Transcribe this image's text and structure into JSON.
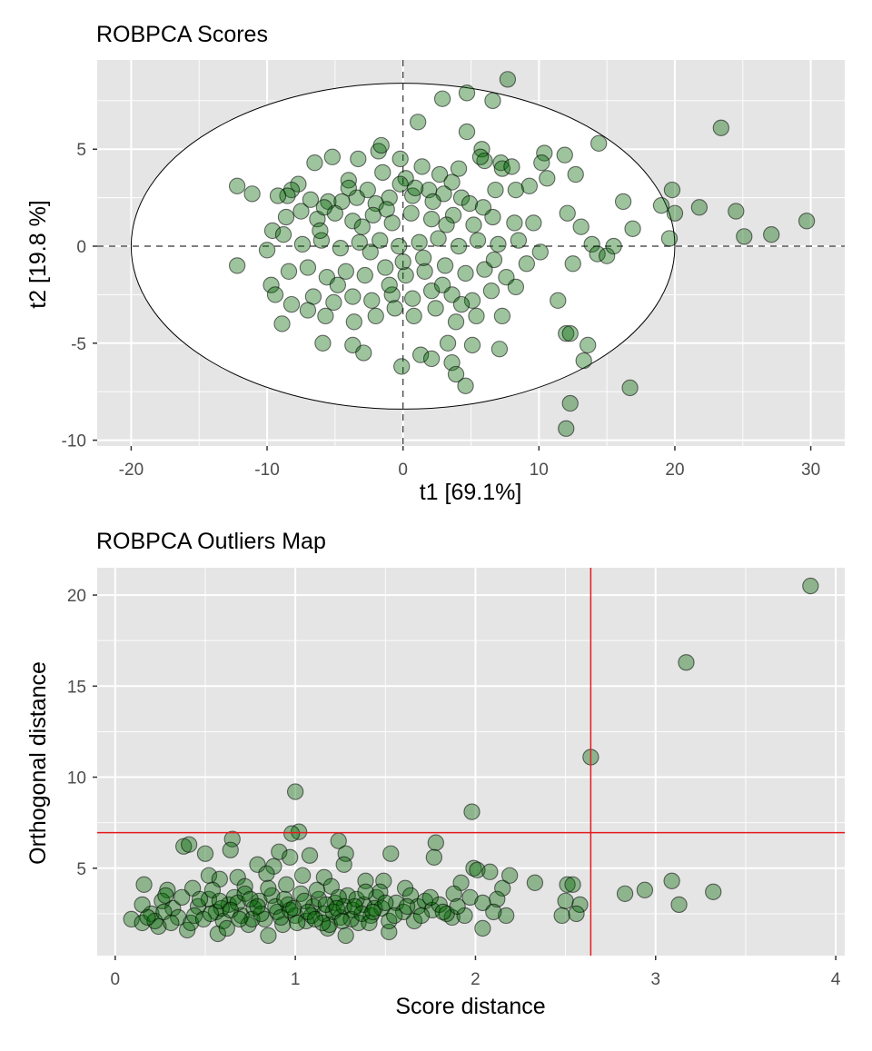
{
  "colors": {
    "panel_bg": "#E5E5E5",
    "grid_major": "#FFFFFF",
    "point_fill": "#006400",
    "point_stroke": "#000000",
    "cutoff_line": "#E41A1C",
    "ellipse_fill": "#FFFFFF"
  },
  "chart_data": [
    {
      "type": "scatter",
      "title": "ROBPCA Scores",
      "xlabel": "t1 [69.1%]",
      "ylabel": "t2 [19.8 %]",
      "xlim": [
        -22.5,
        32.5
      ],
      "ylim": [
        -10.3,
        9.6
      ],
      "xticks": [
        -20,
        -10,
        0,
        10,
        20,
        30
      ],
      "yticks": [
        -10,
        -5,
        0,
        5
      ],
      "xtick_labels": [
        "-20",
        "-10",
        "0",
        "10",
        "20",
        "30"
      ],
      "ytick_labels": [
        "-10",
        "-5",
        "0",
        "5"
      ],
      "grid": true,
      "reference_lines": {
        "x": 0,
        "y": 0,
        "style": "dashed"
      },
      "ellipse": {
        "center": [
          0,
          0
        ],
        "semi_axis_x": 20,
        "semi_axis_y": 8.4
      },
      "points": [
        [
          7.7,
          8.6
        ],
        [
          4.7,
          7.9
        ],
        [
          2.9,
          7.6
        ],
        [
          6.6,
          7.5
        ],
        [
          1.1,
          6.4
        ],
        [
          23.4,
          6.1
        ],
        [
          4.7,
          5.9
        ],
        [
          14.4,
          5.3
        ],
        [
          5.8,
          5.0
        ],
        [
          10.4,
          4.8
        ],
        [
          -5.2,
          4.6
        ],
        [
          11.9,
          4.7
        ],
        [
          -3.3,
          4.5
        ],
        [
          -1.8,
          4.9
        ],
        [
          -1.6,
          5.2
        ],
        [
          -6.5,
          4.3
        ],
        [
          6.0,
          4.4
        ],
        [
          -0.2,
          4.5
        ],
        [
          1.4,
          4.1
        ],
        [
          7.2,
          4.3
        ],
        [
          10.2,
          4.3
        ],
        [
          -4.0,
          3.4
        ],
        [
          2.7,
          3.7
        ],
        [
          12.7,
          3.7
        ],
        [
          0.2,
          3.5
        ],
        [
          3.6,
          3.3
        ],
        [
          10.6,
          3.5
        ],
        [
          -0.2,
          3.2
        ],
        [
          7.3,
          4.0
        ],
        [
          5.7,
          4.6
        ],
        [
          8.0,
          4.1
        ],
        [
          4.1,
          4.0
        ],
        [
          -12.2,
          3.1
        ],
        [
          -11.1,
          2.7
        ],
        [
          -7.7,
          3.2
        ],
        [
          -8.2,
          2.9
        ],
        [
          -8.5,
          2.6
        ],
        [
          -9.2,
          2.6
        ],
        [
          -6.8,
          2.4
        ],
        [
          -5.5,
          2.3
        ],
        [
          -4.5,
          2.3
        ],
        [
          -3.4,
          2.5
        ],
        [
          -2.0,
          2.2
        ],
        [
          -1.0,
          2.5
        ],
        [
          0.7,
          2.6
        ],
        [
          1.9,
          2.9
        ],
        [
          3.0,
          2.7
        ],
        [
          4.3,
          2.5
        ],
        [
          6.8,
          2.9
        ],
        [
          8.3,
          2.9
        ],
        [
          9.3,
          3.1
        ],
        [
          19.0,
          2.1
        ],
        [
          19.8,
          2.9
        ],
        [
          21.8,
          2.0
        ],
        [
          24.5,
          1.8
        ],
        [
          16.2,
          2.3
        ],
        [
          20.0,
          1.7
        ],
        [
          29.7,
          1.3
        ],
        [
          25.1,
          0.5
        ],
        [
          27.1,
          0.6
        ],
        [
          19.6,
          0.4
        ],
        [
          -9.6,
          0.8
        ],
        [
          -8.6,
          1.5
        ],
        [
          -7.5,
          1.8
        ],
        [
          -6.3,
          1.4
        ],
        [
          -5.0,
          1.7
        ],
        [
          -3.7,
          1.3
        ],
        [
          -2.2,
          1.6
        ],
        [
          -0.8,
          1.2
        ],
        [
          0.6,
          1.7
        ],
        [
          2.1,
          1.4
        ],
        [
          3.7,
          1.6
        ],
        [
          5.2,
          1.1
        ],
        [
          6.6,
          1.5
        ],
        [
          8.2,
          1.2
        ],
        [
          9.6,
          1.2
        ],
        [
          12.1,
          1.7
        ],
        [
          13.1,
          1.0
        ],
        [
          16.9,
          0.9
        ],
        [
          -10.0,
          -0.2
        ],
        [
          -8.8,
          0.6
        ],
        [
          -7.4,
          0.1
        ],
        [
          -6.0,
          0.3
        ],
        [
          -4.6,
          -0.1
        ],
        [
          -3.2,
          0.2
        ],
        [
          -1.7,
          0.3
        ],
        [
          -0.3,
          0.0
        ],
        [
          1.2,
          0.2
        ],
        [
          2.6,
          0.4
        ],
        [
          4.1,
          0.0
        ],
        [
          5.5,
          0.3
        ],
        [
          7.0,
          0.1
        ],
        [
          8.5,
          0.3
        ],
        [
          10.1,
          -0.3
        ],
        [
          13.9,
          0.1
        ],
        [
          14.3,
          -0.4
        ],
        [
          15.0,
          -0.5
        ],
        [
          15.5,
          0.0
        ],
        [
          -12.2,
          -1.0
        ],
        [
          -9.7,
          -2.0
        ],
        [
          -8.4,
          -1.3
        ],
        [
          -7.0,
          -1.1
        ],
        [
          -5.6,
          -1.6
        ],
        [
          -4.2,
          -1.3
        ],
        [
          -2.8,
          -1.5
        ],
        [
          -1.3,
          -1.1
        ],
        [
          0.2,
          -1.5
        ],
        [
          1.6,
          -1.3
        ],
        [
          3.1,
          -1.0
        ],
        [
          4.6,
          -1.4
        ],
        [
          6.0,
          -1.2
        ],
        [
          7.6,
          -1.6
        ],
        [
          9.1,
          -0.9
        ],
        [
          12.5,
          -0.9
        ],
        [
          -9.4,
          -2.5
        ],
        [
          -8.2,
          -3.0
        ],
        [
          -6.6,
          -2.6
        ],
        [
          -5.1,
          -2.9
        ],
        [
          -3.7,
          -2.6
        ],
        [
          -2.3,
          -2.8
        ],
        [
          -0.8,
          -2.5
        ],
        [
          0.7,
          -2.7
        ],
        [
          2.1,
          -2.3
        ],
        [
          3.6,
          -2.5
        ],
        [
          5.1,
          -2.8
        ],
        [
          6.5,
          -2.3
        ],
        [
          8.3,
          -2.1
        ],
        [
          11.4,
          -2.8
        ],
        [
          -8.9,
          -4.0
        ],
        [
          -7.0,
          -3.3
        ],
        [
          -5.7,
          -3.6
        ],
        [
          -3.6,
          -3.9
        ],
        [
          -2.0,
          -3.6
        ],
        [
          -0.6,
          -3.2
        ],
        [
          0.8,
          -3.6
        ],
        [
          2.4,
          -3.2
        ],
        [
          3.9,
          -3.9
        ],
        [
          5.4,
          -3.6
        ],
        [
          7.3,
          -3.6
        ],
        [
          12.0,
          -4.5
        ],
        [
          12.3,
          -4.5
        ],
        [
          13.6,
          -5.1
        ],
        [
          -5.9,
          -5.0
        ],
        [
          -3.7,
          -5.1
        ],
        [
          -2.9,
          -5.5
        ],
        [
          -0.1,
          -6.2
        ],
        [
          1.3,
          -5.6
        ],
        [
          3.3,
          -5.0
        ],
        [
          5.1,
          -5.1
        ],
        [
          7.1,
          -5.3
        ],
        [
          2.1,
          -5.8
        ],
        [
          3.6,
          -6.0
        ],
        [
          13.3,
          -5.9
        ],
        [
          3.9,
          -6.6
        ],
        [
          4.6,
          -7.2
        ],
        [
          16.7,
          -7.3
        ],
        [
          12.3,
          -8.1
        ],
        [
          12.0,
          -9.4
        ],
        [
          -1.5,
          3.8
        ],
        [
          -2.6,
          2.9
        ],
        [
          0.9,
          3.0
        ],
        [
          -5.8,
          2.0
        ],
        [
          4.9,
          2.2
        ],
        [
          -1.2,
          1.9
        ],
        [
          2.2,
          2.3
        ],
        [
          -3.0,
          1.0
        ],
        [
          1.5,
          -0.6
        ],
        [
          -4.0,
          3.0
        ],
        [
          3.2,
          1.1
        ],
        [
          -6.1,
          0.8
        ],
        [
          5.9,
          2.0
        ],
        [
          -2.4,
          -0.3
        ],
        [
          0.0,
          -0.8
        ],
        [
          2.9,
          -2.0
        ],
        [
          -4.8,
          -2.0
        ],
        [
          6.7,
          -0.7
        ],
        [
          -1.0,
          -2.0
        ],
        [
          4.3,
          -3.0
        ]
      ]
    },
    {
      "type": "scatter",
      "title": "ROBPCA Outliers Map",
      "xlabel": "Score distance",
      "ylabel": "Orthogonal distance",
      "xlim": [
        -0.1,
        4.05
      ],
      "ylim": [
        0.2,
        21.5
      ],
      "xticks": [
        0,
        1,
        2,
        3,
        4
      ],
      "yticks": [
        5,
        10,
        15,
        20
      ],
      "xtick_labels": [
        "0",
        "1",
        "2",
        "3",
        "4"
      ],
      "ytick_labels": [
        "5",
        "10",
        "15",
        "20"
      ],
      "grid": true,
      "cutoffs": {
        "score_distance": 2.64,
        "orthogonal_distance": 6.95
      },
      "points": [
        [
          3.86,
          20.5
        ],
        [
          3.17,
          16.3
        ],
        [
          2.64,
          11.1
        ],
        [
          1.0,
          9.2
        ],
        [
          1.98,
          8.1
        ],
        [
          1.02,
          7.0
        ],
        [
          0.98,
          6.9
        ],
        [
          0.65,
          6.6
        ],
        [
          1.24,
          6.5
        ],
        [
          1.78,
          6.4
        ],
        [
          0.38,
          6.2
        ],
        [
          0.41,
          6.3
        ],
        [
          0.64,
          6.0
        ],
        [
          0.5,
          5.8
        ],
        [
          0.91,
          5.9
        ],
        [
          1.08,
          5.7
        ],
        [
          1.28,
          5.8
        ],
        [
          1.53,
          5.8
        ],
        [
          1.77,
          5.6
        ],
        [
          0.79,
          5.2
        ],
        [
          0.88,
          5.1
        ],
        [
          0.97,
          5.6
        ],
        [
          1.27,
          5.2
        ],
        [
          1.99,
          5.0
        ],
        [
          2.01,
          4.9
        ],
        [
          2.08,
          4.8
        ],
        [
          2.19,
          4.6
        ],
        [
          0.52,
          4.6
        ],
        [
          0.58,
          4.4
        ],
        [
          0.68,
          4.5
        ],
        [
          0.84,
          4.7
        ],
        [
          1.04,
          4.6
        ],
        [
          1.16,
          4.5
        ],
        [
          1.39,
          4.3
        ],
        [
          1.49,
          4.3
        ],
        [
          0.16,
          4.1
        ],
        [
          0.29,
          3.8
        ],
        [
          0.43,
          3.9
        ],
        [
          0.72,
          4.0
        ],
        [
          0.95,
          4.1
        ],
        [
          1.2,
          4.0
        ],
        [
          1.61,
          3.9
        ],
        [
          1.92,
          4.2
        ],
        [
          2.33,
          4.2
        ],
        [
          2.51,
          4.1
        ],
        [
          2.54,
          4.1
        ],
        [
          3.09,
          4.3
        ],
        [
          2.15,
          3.9
        ],
        [
          2.83,
          3.6
        ],
        [
          2.94,
          3.8
        ],
        [
          3.32,
          3.7
        ],
        [
          3.13,
          3.0
        ],
        [
          2.5,
          3.2
        ],
        [
          2.58,
          3.0
        ],
        [
          2.12,
          3.3
        ],
        [
          1.97,
          3.4
        ],
        [
          2.48,
          2.4
        ],
        [
          2.56,
          2.5
        ],
        [
          2.04,
          3.1
        ],
        [
          2.17,
          2.4
        ],
        [
          2.1,
          2.6
        ],
        [
          2.04,
          1.7
        ],
        [
          1.87,
          2.3
        ],
        [
          1.94,
          2.4
        ],
        [
          1.66,
          2.1
        ],
        [
          1.52,
          1.5
        ],
        [
          1.18,
          1.7
        ],
        [
          1.28,
          1.3
        ],
        [
          0.85,
          1.3
        ],
        [
          0.57,
          1.4
        ],
        [
          0.4,
          1.6
        ],
        [
          0.24,
          1.8
        ],
        [
          0.09,
          2.2
        ],
        [
          0.15,
          2.0
        ],
        [
          0.2,
          2.5
        ],
        [
          0.15,
          3.0
        ],
        [
          0.26,
          3.2
        ],
        [
          0.32,
          2.8
        ],
        [
          0.35,
          2.3
        ],
        [
          0.42,
          2.0
        ],
        [
          0.46,
          2.9
        ],
        [
          0.52,
          3.3
        ],
        [
          0.56,
          2.6
        ],
        [
          0.6,
          2.1
        ],
        [
          0.63,
          3.0
        ],
        [
          0.66,
          3.4
        ],
        [
          0.7,
          2.4
        ],
        [
          0.74,
          1.9
        ],
        [
          0.77,
          2.8
        ],
        [
          0.8,
          3.2
        ],
        [
          0.83,
          2.2
        ],
        [
          0.87,
          3.5
        ],
        [
          0.9,
          2.6
        ],
        [
          0.93,
          1.9
        ],
        [
          0.96,
          3.0
        ],
        [
          1.0,
          2.4
        ],
        [
          1.03,
          3.6
        ],
        [
          1.06,
          2.1
        ],
        [
          1.1,
          2.9
        ],
        [
          1.13,
          3.3
        ],
        [
          1.16,
          2.5
        ],
        [
          1.19,
          1.9
        ],
        [
          1.22,
          3.1
        ],
        [
          1.25,
          2.3
        ],
        [
          1.29,
          3.5
        ],
        [
          1.32,
          2.7
        ],
        [
          1.35,
          2.0
        ],
        [
          1.38,
          3.0
        ],
        [
          1.42,
          2.4
        ],
        [
          1.45,
          3.4
        ],
        [
          1.48,
          2.8
        ],
        [
          1.52,
          2.1
        ],
        [
          1.56,
          3.1
        ],
        [
          1.6,
          2.6
        ],
        [
          1.64,
          3.5
        ],
        [
          1.68,
          2.9
        ],
        [
          1.72,
          3.2
        ],
        [
          1.76,
          2.7
        ],
        [
          1.8,
          3.0
        ],
        [
          1.84,
          2.5
        ],
        [
          1.88,
          3.6
        ],
        [
          0.22,
          2.1
        ],
        [
          0.27,
          2.6
        ],
        [
          0.31,
          2.0
        ],
        [
          0.37,
          3.4
        ],
        [
          0.44,
          2.4
        ],
        [
          0.49,
          2.2
        ],
        [
          0.54,
          3.8
        ],
        [
          0.59,
          2.8
        ],
        [
          0.62,
          1.7
        ],
        [
          0.68,
          3.1
        ],
        [
          0.72,
          3.6
        ],
        [
          0.76,
          2.2
        ],
        [
          0.81,
          2.5
        ],
        [
          0.85,
          3.9
        ],
        [
          0.89,
          2.9
        ],
        [
          0.92,
          2.3
        ],
        [
          0.97,
          2.7
        ],
        [
          1.01,
          2.0
        ],
        [
          1.05,
          3.2
        ],
        [
          1.09,
          2.4
        ],
        [
          1.12,
          3.8
        ],
        [
          1.15,
          2.0
        ],
        [
          1.21,
          2.6
        ],
        [
          1.24,
          3.4
        ],
        [
          1.27,
          2.9
        ],
        [
          1.31,
          2.2
        ],
        [
          1.34,
          3.3
        ],
        [
          1.37,
          2.5
        ],
        [
          1.41,
          2.0
        ],
        [
          1.44,
          2.8
        ],
        [
          1.47,
          3.7
        ],
        [
          0.18,
          2.3
        ],
        [
          0.28,
          3.5
        ],
        [
          0.47,
          3.3
        ],
        [
          0.53,
          2.5
        ],
        [
          0.58,
          3.2
        ],
        [
          0.64,
          2.7
        ],
        [
          0.69,
          2.2
        ],
        [
          0.75,
          3.3
        ],
        [
          0.79,
          2.9
        ],
        [
          0.94,
          3.3
        ],
        [
          0.99,
          2.8
        ],
        [
          1.07,
          2.6
        ],
        [
          1.11,
          2.2
        ],
        [
          1.17,
          3.0
        ],
        [
          1.23,
          2.8
        ],
        [
          1.26,
          2.1
        ],
        [
          1.33,
          2.9
        ],
        [
          1.39,
          3.7
        ],
        [
          1.43,
          2.6
        ],
        [
          1.5,
          3.1
        ],
        [
          1.55,
          2.4
        ],
        [
          1.62,
          2.9
        ],
        [
          1.7,
          2.4
        ],
        [
          1.75,
          3.4
        ],
        [
          1.82,
          2.6
        ],
        [
          1.9,
          2.9
        ]
      ]
    }
  ]
}
